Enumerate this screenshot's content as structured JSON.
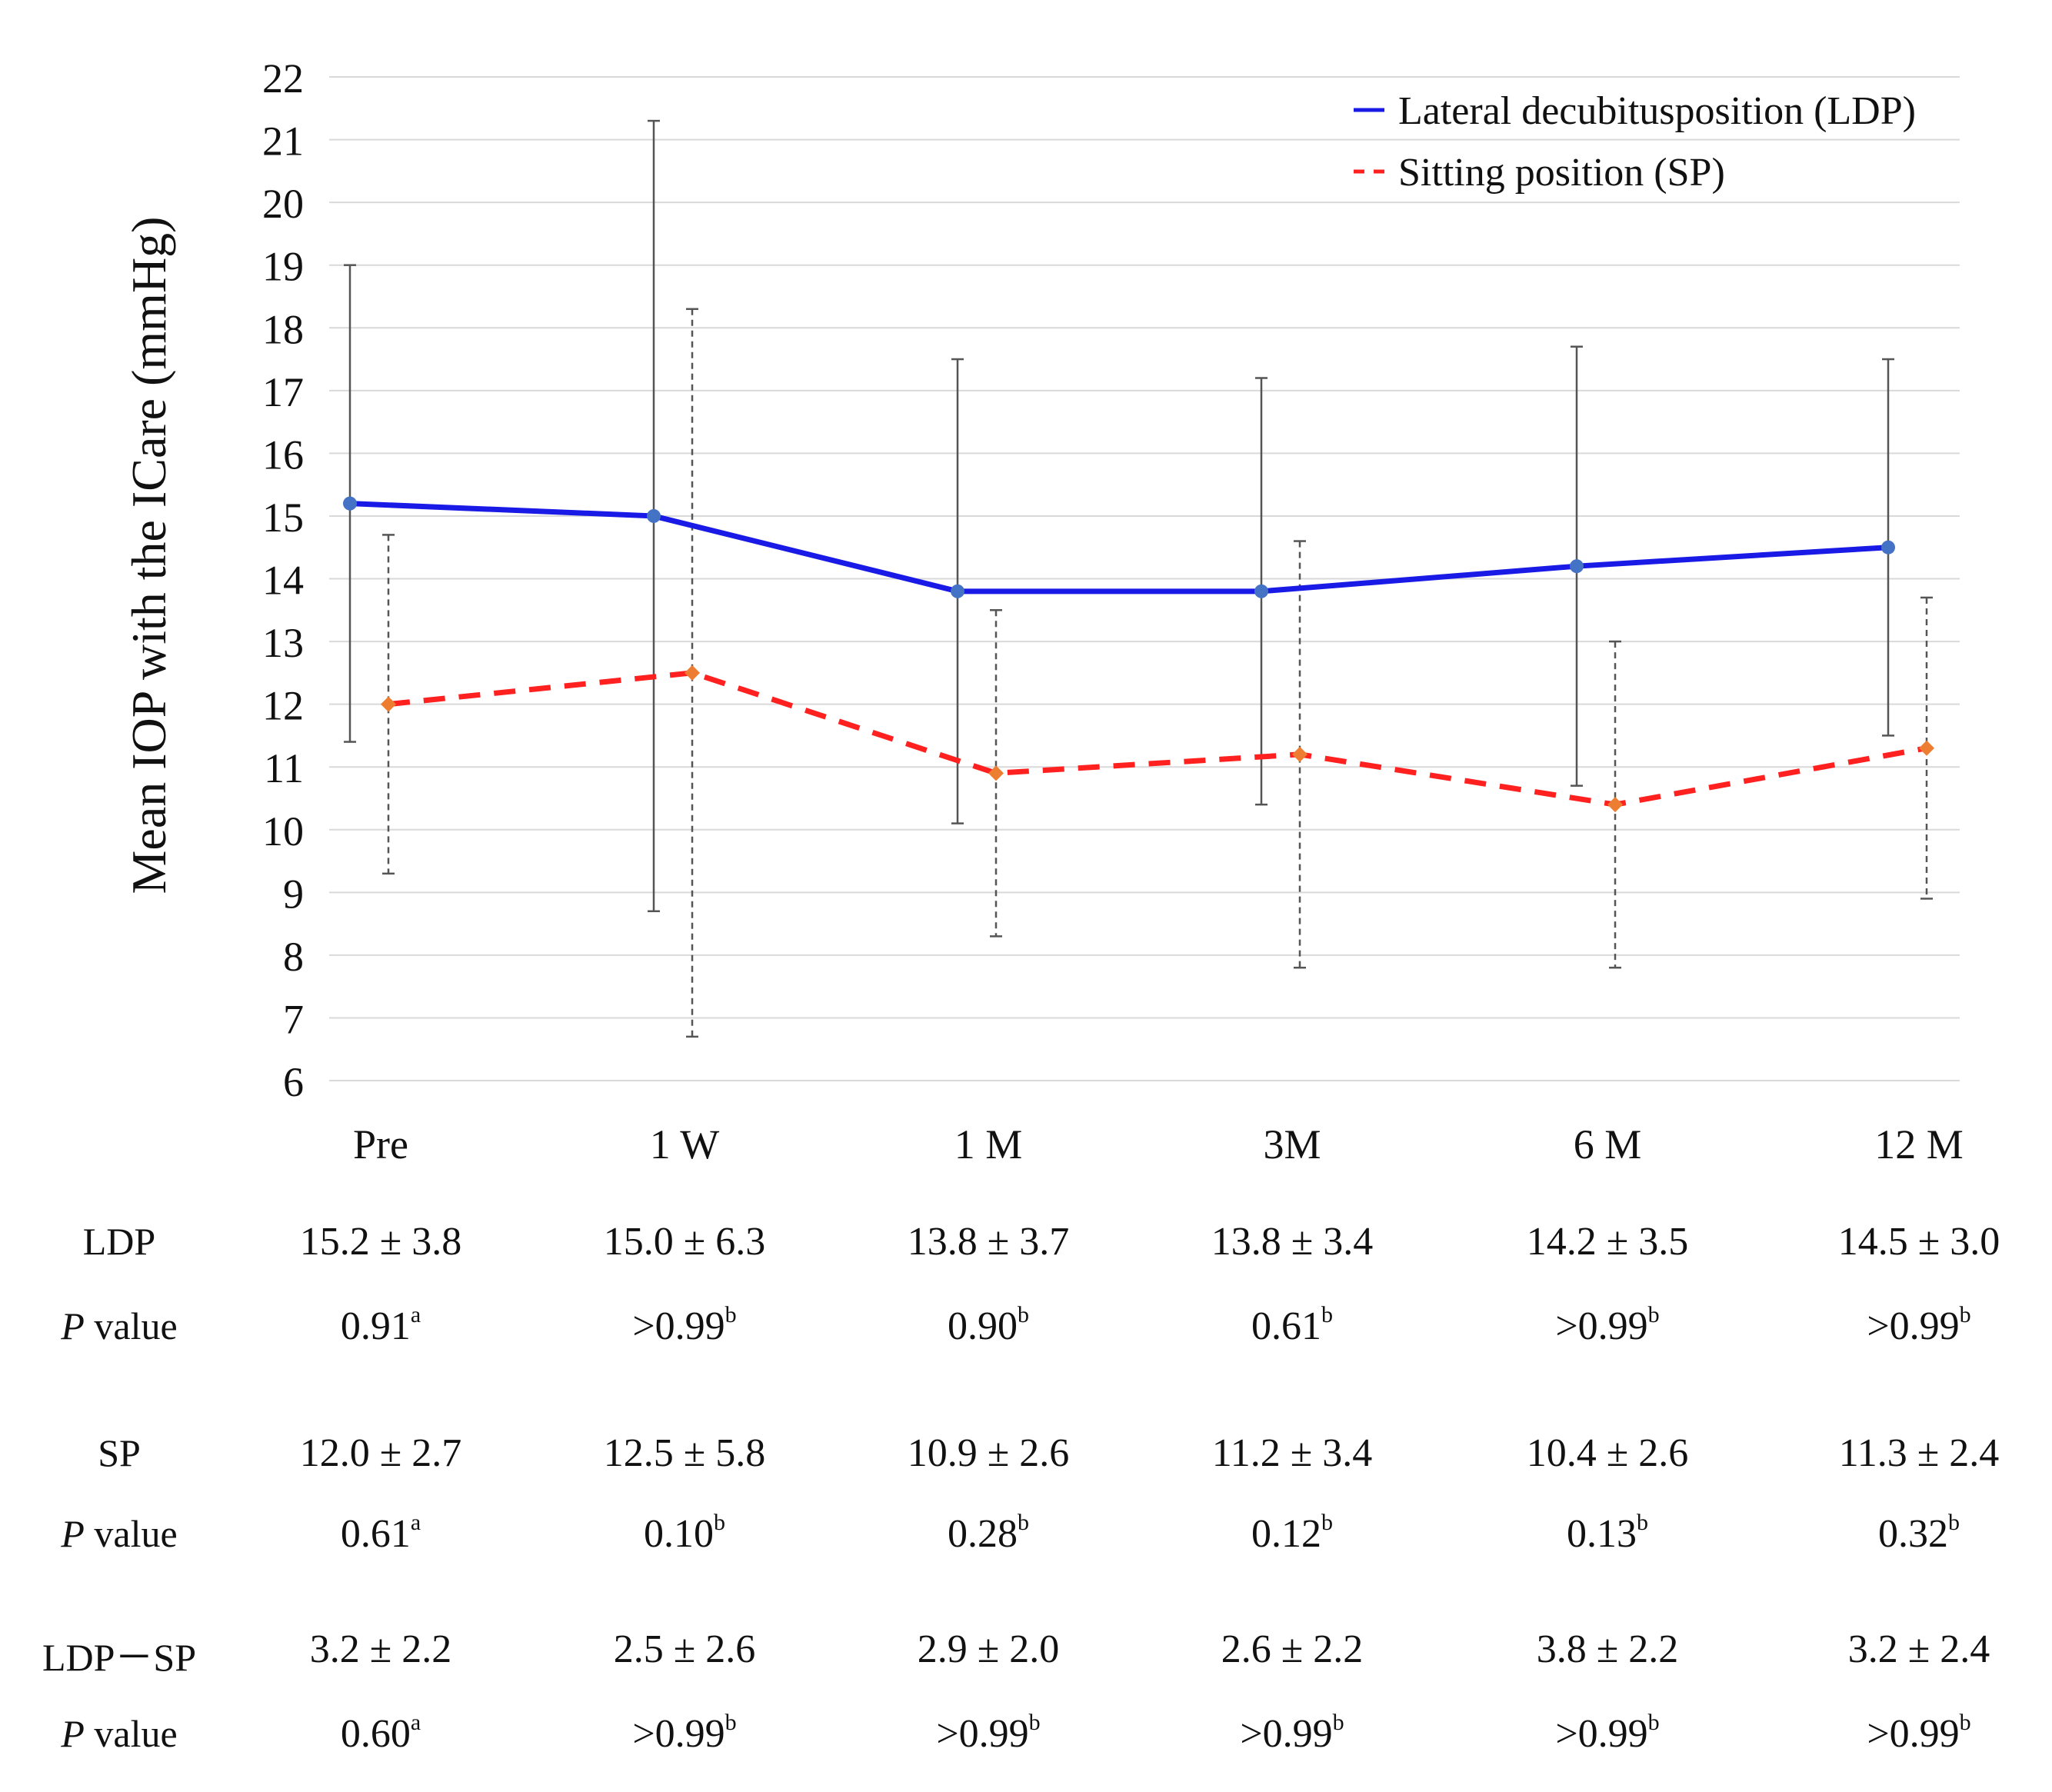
{
  "chart_data": {
    "type": "line",
    "ylabel": "Mean IOP with the ICare (mmHg)",
    "xlabel": "",
    "categories": [
      "Pre",
      "1 W",
      "1 M",
      "3M",
      "6 M",
      "12 M"
    ],
    "ylim": [
      6,
      22
    ],
    "yticks": [
      6,
      7,
      8,
      9,
      10,
      11,
      12,
      13,
      14,
      15,
      16,
      17,
      18,
      19,
      20,
      21,
      22
    ],
    "grid": true,
    "legend_position": "top-right",
    "series": [
      {
        "name": "Lateral decubitusposition (LDP)",
        "style": "solid",
        "color": "#1a1ae6",
        "marker_color": "#4472c4",
        "values": [
          15.2,
          15.0,
          13.8,
          13.8,
          14.2,
          14.5
        ],
        "sd": [
          3.8,
          6.3,
          3.7,
          3.4,
          3.5,
          3.0
        ]
      },
      {
        "name": "Sitting position (SP)",
        "style": "dashed",
        "color": "#ff2020",
        "marker_color": "#ed7d31",
        "values": [
          12.0,
          12.5,
          10.9,
          11.2,
          10.4,
          11.3
        ],
        "sd": [
          2.7,
          5.8,
          2.6,
          3.4,
          2.6,
          2.4
        ]
      }
    ]
  },
  "table": {
    "rows": [
      {
        "label": "LDP",
        "cells": [
          {
            "text": "15.2 ± 3.8"
          },
          {
            "text": "15.0 ± 6.3"
          },
          {
            "text": "13.8 ± 3.7"
          },
          {
            "text": "13.8 ± 3.4"
          },
          {
            "text": "14.2 ± 3.5"
          },
          {
            "text": "14.5 ± 3.0"
          }
        ]
      },
      {
        "label_italic": "P",
        "label_rest": " value",
        "cells": [
          {
            "text": "0.91",
            "sup": "a"
          },
          {
            "text": ">0.99",
            "sup": "b"
          },
          {
            "text": "0.90",
            "sup": "b"
          },
          {
            "text": "0.61",
            "sup": "b"
          },
          {
            "text": ">0.99",
            "sup": "b"
          },
          {
            "text": ">0.99",
            "sup": "b"
          }
        ]
      },
      {
        "label": "SP",
        "cells": [
          {
            "text": "12.0 ± 2.7"
          },
          {
            "text": "12.5 ± 5.8"
          },
          {
            "text": "10.9 ± 2.6"
          },
          {
            "text": "11.2 ± 3.4"
          },
          {
            "text": "10.4 ± 2.6"
          },
          {
            "text": "11.3 ± 2.4"
          }
        ]
      },
      {
        "label_italic": "P",
        "label_rest": " value",
        "cells": [
          {
            "text": "0.61",
            "sup": "a"
          },
          {
            "text": "0.10",
            "sup": "b"
          },
          {
            "text": "0.28",
            "sup": "b"
          },
          {
            "text": "0.12",
            "sup": "b"
          },
          {
            "text": "0.13",
            "sup": "b"
          },
          {
            "text": "0.32",
            "sup": "b"
          }
        ]
      },
      {
        "label": "LDP－SP",
        "cells": [
          {
            "text": "3.2 ± 2.2"
          },
          {
            "text": "2.5 ± 2.6"
          },
          {
            "text": "2.9 ± 2.0"
          },
          {
            "text": "2.6 ± 2.2"
          },
          {
            "text": "3.8 ± 2.2"
          },
          {
            "text": "3.2 ± 2.4"
          }
        ]
      },
      {
        "label_italic": "P",
        "label_rest": " value",
        "cells": [
          {
            "text": "0.60",
            "sup": "a"
          },
          {
            "text": ">0.99",
            "sup": "b"
          },
          {
            "text": ">0.99",
            "sup": "b"
          },
          {
            "text": ">0.99",
            "sup": "b"
          },
          {
            "text": ">0.99",
            "sup": "b"
          },
          {
            "text": ">0.99",
            "sup": "b"
          }
        ]
      }
    ]
  }
}
